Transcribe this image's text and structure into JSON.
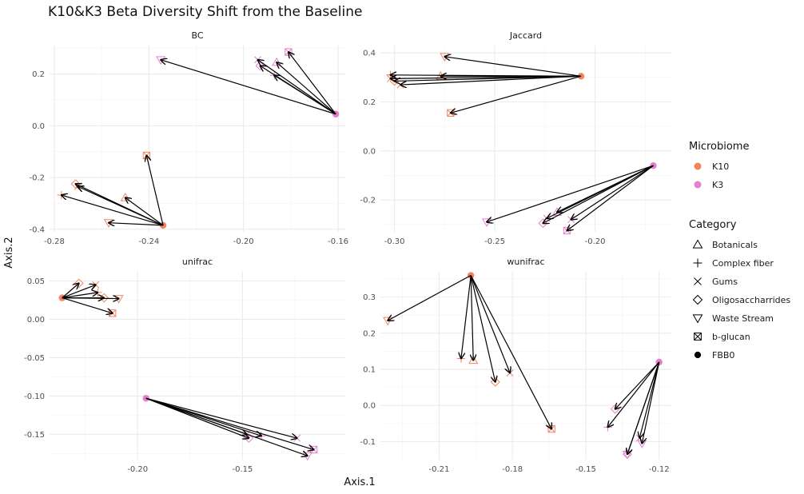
{
  "chart_data": {
    "type": "scatter",
    "title": "K10&K3 Beta Diversity Shift from the Baseline",
    "xlabel": "Axis.1",
    "ylabel": "Axis.2",
    "grid": true,
    "legend_placement": "right",
    "colors": {
      "K10": "#F4845F",
      "K3": "#E47FCC",
      "arrow": "#000000",
      "grid": "#ebebeb"
    },
    "legend": {
      "microbiome_title": "Microbiome",
      "microbiome": [
        {
          "label": "K10",
          "color": "#F4845F"
        },
        {
          "label": "K3",
          "color": "#E47FCC"
        }
      ],
      "category_title": "Category",
      "categories": [
        {
          "label": "Botanicals",
          "shape": "triangle-up"
        },
        {
          "label": "Complex fiber",
          "shape": "plus"
        },
        {
          "label": "Gums",
          "shape": "cross"
        },
        {
          "label": "Oligosaccharrides",
          "shape": "diamond"
        },
        {
          "label": "Waste Stream",
          "shape": "triangle-down"
        },
        {
          "label": "b-glucan",
          "shape": "square-x"
        },
        {
          "label": "FBB0",
          "shape": "dot"
        }
      ]
    },
    "panels": [
      {
        "name": "BC",
        "xlim": [
          -0.282,
          -0.157
        ],
        "ylim": [
          -0.41,
          0.31
        ],
        "xticks": [
          -0.28,
          -0.24,
          -0.2,
          -0.16
        ],
        "xtick_labels": [
          "-0.28",
          "-0.24",
          "-0.20",
          "-0.16"
        ],
        "yticks": [
          -0.4,
          -0.2,
          0.0,
          0.2
        ],
        "ytick_labels": [
          "-0.4",
          "-0.2",
          "0.0",
          "0.2"
        ],
        "groups": [
          {
            "microbiome": "K10",
            "baseline": [
              -0.234,
              -0.385
            ],
            "points": [
              {
                "category": "b-glucan",
                "x": -0.241,
                "y": -0.115
              },
              {
                "category": "Oligosaccharrides",
                "x": -0.271,
                "y": -0.225
              },
              {
                "category": "Gums",
                "x": -0.27,
                "y": -0.235
              },
              {
                "category": "Complex fiber",
                "x": -0.277,
                "y": -0.268
              },
              {
                "category": "Botanicals",
                "x": -0.25,
                "y": -0.278
              },
              {
                "category": "Waste Stream",
                "x": -0.257,
                "y": -0.375
              }
            ]
          },
          {
            "microbiome": "K3",
            "baseline": [
              -0.161,
              0.045
            ],
            "points": [
              {
                "category": "Waste Stream",
                "x": -0.235,
                "y": 0.255
              },
              {
                "category": "b-glucan",
                "x": -0.181,
                "y": 0.285
              },
              {
                "category": "Gums",
                "x": -0.194,
                "y": 0.255
              },
              {
                "category": "Botanicals",
                "x": -0.186,
                "y": 0.245
              },
              {
                "category": "Oligosaccharrides",
                "x": -0.193,
                "y": 0.232
              },
              {
                "category": "Complex fiber",
                "x": -0.187,
                "y": 0.195
              }
            ]
          }
        ]
      },
      {
        "name": "Jaccard",
        "xlim": [
          -0.307,
          -0.162
        ],
        "ylim": [
          -0.33,
          0.43
        ],
        "xticks": [
          -0.3,
          -0.25,
          -0.2
        ],
        "xtick_labels": [
          "-0.30",
          "-0.25",
          "-0.20"
        ],
        "yticks": [
          -0.2,
          0.0,
          0.2,
          0.4
        ],
        "ytick_labels": [
          "-0.2",
          "0.0",
          "0.2",
          "0.4"
        ],
        "groups": [
          {
            "microbiome": "K10",
            "baseline": [
              -0.207,
              0.305
            ],
            "points": [
              {
                "category": "Waste Stream",
                "x": -0.275,
                "y": 0.385
              },
              {
                "category": "Botanicals",
                "x": -0.277,
                "y": 0.305
              },
              {
                "category": "Complex fiber",
                "x": -0.302,
                "y": 0.31
              },
              {
                "category": "Gums",
                "x": -0.302,
                "y": 0.295
              },
              {
                "category": "Oligosaccharrides",
                "x": -0.3,
                "y": 0.285
              },
              {
                "category": "Gums",
                "x": -0.297,
                "y": 0.27
              },
              {
                "category": "b-glucan",
                "x": -0.272,
                "y": 0.155
              }
            ]
          },
          {
            "microbiome": "K3",
            "baseline": [
              -0.171,
              -0.06
            ],
            "points": [
              {
                "category": "Waste Stream",
                "x": -0.254,
                "y": -0.29
              },
              {
                "category": "Botanicals",
                "x": -0.219,
                "y": -0.25
              },
              {
                "category": "Gums",
                "x": -0.224,
                "y": -0.275
              },
              {
                "category": "Oligosaccharrides",
                "x": -0.226,
                "y": -0.295
              },
              {
                "category": "Gums",
                "x": -0.212,
                "y": -0.28
              },
              {
                "category": "b-glucan",
                "x": -0.214,
                "y": -0.325
              }
            ]
          }
        ]
      },
      {
        "name": "unifrac",
        "xlim": [
          -0.242,
          -0.101
        ],
        "ylim": [
          -0.183,
          0.062
        ],
        "xticks": [
          -0.2,
          -0.15
        ],
        "xtick_labels": [
          "-0.20",
          "-0.15"
        ],
        "yticks": [
          -0.15,
          -0.1,
          -0.05,
          0.0,
          0.05
        ],
        "ytick_labels": [
          "-0.15",
          "-0.10",
          "-0.05",
          "0.00",
          "0.05"
        ],
        "groups": [
          {
            "microbiome": "K10",
            "baseline": [
              -0.236,
              0.028
            ],
            "points": [
              {
                "category": "Oligosaccharrides",
                "x": -0.228,
                "y": 0.047
              },
              {
                "category": "Gums",
                "x": -0.22,
                "y": 0.045
              },
              {
                "category": "Complex fiber",
                "x": -0.219,
                "y": 0.035
              },
              {
                "category": "Oligosaccharrides",
                "x": -0.216,
                "y": 0.028
              },
              {
                "category": "Waste Stream",
                "x": -0.209,
                "y": 0.027
              },
              {
                "category": "b-glucan",
                "x": -0.212,
                "y": 0.008
              }
            ]
          },
          {
            "microbiome": "K3",
            "baseline": [
              -0.196,
              -0.103
            ],
            "points": [
              {
                "category": "Gums",
                "x": -0.124,
                "y": -0.155
              },
              {
                "category": "Complex fiber",
                "x": -0.141,
                "y": -0.152
              },
              {
                "category": "Oligosaccharrides",
                "x": -0.147,
                "y": -0.155
              },
              {
                "category": "Gums",
                "x": -0.148,
                "y": -0.15
              },
              {
                "category": "b-glucan",
                "x": -0.116,
                "y": -0.17
              },
              {
                "category": "Waste Stream",
                "x": -0.119,
                "y": -0.178
              }
            ]
          }
        ]
      },
      {
        "name": "wunifrac",
        "xlim": [
          -0.234,
          -0.115
        ],
        "ylim": [
          -0.15,
          0.37
        ],
        "xticks": [
          -0.21,
          -0.18,
          -0.15,
          -0.12
        ],
        "xtick_labels": [
          "-0.21",
          "-0.18",
          "-0.15",
          "-0.12"
        ],
        "yticks": [
          -0.1,
          0.0,
          0.1,
          0.2,
          0.3
        ],
        "ytick_labels": [
          "-0.1",
          "0.0",
          "0.1",
          "0.2",
          "0.3"
        ],
        "groups": [
          {
            "microbiome": "K10",
            "baseline": [
              -0.197,
              0.36
            ],
            "points": [
              {
                "category": "Waste Stream",
                "x": -0.231,
                "y": 0.235
              },
              {
                "category": "Complex fiber",
                "x": -0.201,
                "y": 0.13
              },
              {
                "category": "Botanicals",
                "x": -0.196,
                "y": 0.125
              },
              {
                "category": "Oligosaccharrides",
                "x": -0.187,
                "y": 0.065
              },
              {
                "category": "Gums",
                "x": -0.181,
                "y": 0.09
              },
              {
                "category": "b-glucan",
                "x": -0.164,
                "y": -0.065
              }
            ]
          },
          {
            "microbiome": "K3",
            "baseline": [
              -0.12,
              0.12
            ],
            "points": [
              {
                "category": "Oligosaccharrides",
                "x": -0.138,
                "y": -0.01
              },
              {
                "category": "Complex fiber",
                "x": -0.141,
                "y": -0.06
              },
              {
                "category": "Gums",
                "x": -0.128,
                "y": -0.09
              },
              {
                "category": "Waste Stream",
                "x": -0.127,
                "y": -0.105
              },
              {
                "category": "Oligosaccharrides",
                "x": -0.133,
                "y": -0.135
              },
              {
                "category": "Waste Stream",
                "x": -0.133,
                "y": -0.135
              }
            ]
          }
        ]
      }
    ]
  }
}
